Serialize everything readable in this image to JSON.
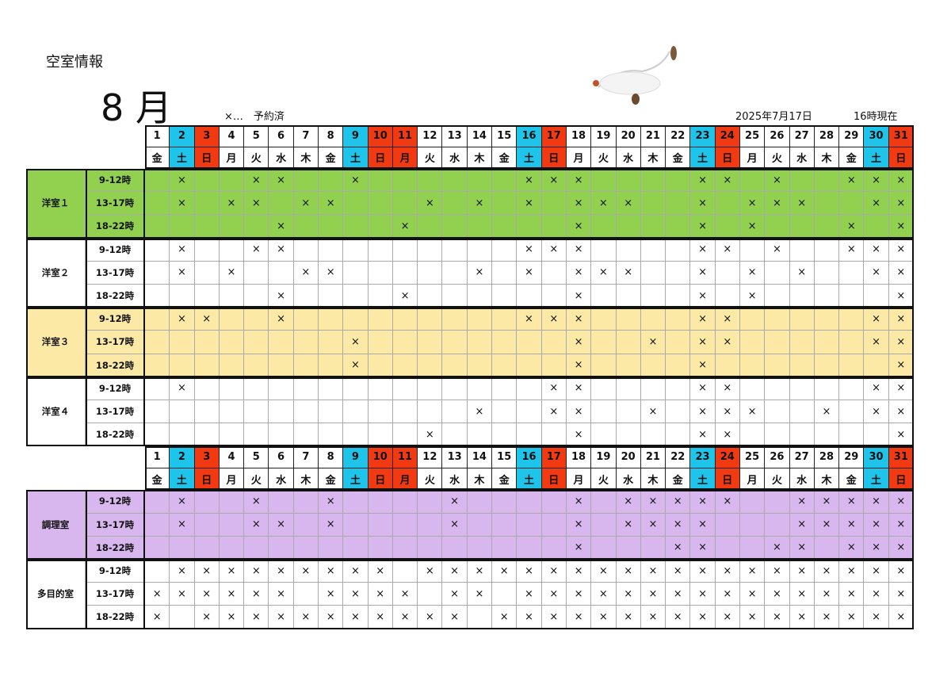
{
  "header": {
    "title": "空室情報",
    "month": "8 月",
    "legend": "×…　予約済",
    "date": "2025年7月17日",
    "time": "16時現在"
  },
  "days": [
    {
      "day": 1,
      "weekday": "金",
      "color": "#ffffff"
    },
    {
      "day": 2,
      "weekday": "土",
      "color": "#1fc4ea"
    },
    {
      "day": 3,
      "weekday": "日",
      "color": "#f23a12"
    },
    {
      "day": 4,
      "weekday": "月",
      "color": "#ffffff"
    },
    {
      "day": 5,
      "weekday": "火",
      "color": "#ffffff"
    },
    {
      "day": 6,
      "weekday": "水",
      "color": "#ffffff"
    },
    {
      "day": 7,
      "weekday": "木",
      "color": "#ffffff"
    },
    {
      "day": 8,
      "weekday": "金",
      "color": "#ffffff"
    },
    {
      "day": 9,
      "weekday": "土",
      "color": "#1fc4ea"
    },
    {
      "day": 10,
      "weekday": "日",
      "color": "#f23a12"
    },
    {
      "day": 11,
      "weekday": "月",
      "color": "#f23a12"
    },
    {
      "day": 12,
      "weekday": "火",
      "color": "#ffffff"
    },
    {
      "day": 13,
      "weekday": "水",
      "color": "#ffffff"
    },
    {
      "day": 14,
      "weekday": "木",
      "color": "#ffffff"
    },
    {
      "day": 15,
      "weekday": "金",
      "color": "#ffffff"
    },
    {
      "day": 16,
      "weekday": "土",
      "color": "#1fc4ea"
    },
    {
      "day": 17,
      "weekday": "日",
      "color": "#f23a12"
    },
    {
      "day": 18,
      "weekday": "月",
      "color": "#ffffff"
    },
    {
      "day": 19,
      "weekday": "火",
      "color": "#ffffff"
    },
    {
      "day": 20,
      "weekday": "水",
      "color": "#ffffff"
    },
    {
      "day": 21,
      "weekday": "木",
      "color": "#ffffff"
    },
    {
      "day": 22,
      "weekday": "金",
      "color": "#ffffff"
    },
    {
      "day": 23,
      "weekday": "土",
      "color": "#1fc4ea"
    },
    {
      "day": 24,
      "weekday": "日",
      "color": "#f23a12"
    },
    {
      "day": 25,
      "weekday": "月",
      "color": "#ffffff"
    },
    {
      "day": 26,
      "weekday": "火",
      "color": "#ffffff"
    },
    {
      "day": 27,
      "weekday": "水",
      "color": "#ffffff"
    },
    {
      "day": 28,
      "weekday": "木",
      "color": "#ffffff"
    },
    {
      "day": 29,
      "weekday": "金",
      "color": "#ffffff"
    },
    {
      "day": 30,
      "weekday": "土",
      "color": "#1fc4ea"
    },
    {
      "day": 31,
      "weekday": "日",
      "color": "#f23a12"
    }
  ],
  "sections": [
    {
      "rooms": [
        {
          "name": "洋室１",
          "color": "#92d050",
          "slots": [
            {
              "time": "9-12時",
              "cells": [
                null,
                "×",
                null,
                null,
                "×",
                "×",
                null,
                null,
                "×",
                null,
                null,
                null,
                null,
                null,
                null,
                "×",
                "×",
                "×",
                null,
                null,
                null,
                null,
                "×",
                "×",
                null,
                "×",
                null,
                null,
                "×",
                "×",
                "×"
              ]
            },
            {
              "time": "13-17時",
              "cells": [
                null,
                "×",
                null,
                "×",
                "×",
                null,
                "×",
                "×",
                null,
                null,
                null,
                "×",
                null,
                "×",
                null,
                "×",
                null,
                "×",
                "×",
                "×",
                null,
                null,
                "×",
                null,
                "×",
                "×",
                "×",
                null,
                null,
                "×",
                "×"
              ]
            },
            {
              "time": "18-22時",
              "cells": [
                null,
                null,
                null,
                null,
                null,
                "×",
                null,
                null,
                null,
                null,
                "×",
                null,
                null,
                null,
                null,
                null,
                null,
                "×",
                null,
                null,
                null,
                null,
                "×",
                null,
                "×",
                null,
                null,
                null,
                "×",
                null,
                "×"
              ]
            }
          ]
        },
        {
          "name": "洋室２",
          "color": "#ffffff",
          "slots": [
            {
              "time": "9-12時",
              "cells": [
                null,
                "×",
                null,
                null,
                "×",
                "×",
                null,
                null,
                null,
                null,
                null,
                null,
                null,
                null,
                null,
                "×",
                "×",
                "×",
                null,
                null,
                null,
                null,
                "×",
                "×",
                null,
                "×",
                null,
                null,
                "×",
                "×",
                "×"
              ]
            },
            {
              "time": "13-17時",
              "cells": [
                null,
                "×",
                null,
                "×",
                null,
                null,
                "×",
                "×",
                null,
                null,
                null,
                null,
                null,
                "×",
                null,
                "×",
                null,
                "×",
                "×",
                "×",
                null,
                null,
                "×",
                null,
                "×",
                null,
                "×",
                null,
                null,
                "×",
                "×"
              ]
            },
            {
              "time": "18-22時",
              "cells": [
                null,
                null,
                null,
                null,
                null,
                "×",
                null,
                null,
                null,
                null,
                "×",
                null,
                null,
                null,
                null,
                null,
                null,
                "×",
                null,
                null,
                null,
                null,
                "×",
                null,
                "×",
                null,
                null,
                null,
                null,
                null,
                "×"
              ]
            }
          ]
        },
        {
          "name": "洋室３",
          "color": "#fbe9a5",
          "slots": [
            {
              "time": "9-12時",
              "cells": [
                null,
                "×",
                "×",
                null,
                null,
                "×",
                null,
                null,
                null,
                null,
                null,
                null,
                null,
                null,
                null,
                "×",
                "×",
                "×",
                null,
                null,
                null,
                null,
                "×",
                "×",
                null,
                null,
                null,
                null,
                null,
                "×",
                "×"
              ]
            },
            {
              "time": "13-17時",
              "cells": [
                null,
                null,
                null,
                null,
                null,
                null,
                null,
                null,
                "×",
                null,
                null,
                null,
                null,
                null,
                null,
                null,
                null,
                "×",
                null,
                null,
                "×",
                null,
                "×",
                "×",
                null,
                null,
                null,
                null,
                null,
                "×",
                "×"
              ]
            },
            {
              "time": "18-22時",
              "cells": [
                null,
                null,
                null,
                null,
                null,
                null,
                null,
                null,
                "×",
                null,
                null,
                null,
                null,
                null,
                null,
                null,
                null,
                "×",
                null,
                null,
                null,
                null,
                "×",
                null,
                null,
                null,
                null,
                null,
                null,
                null,
                "×"
              ]
            }
          ]
        },
        {
          "name": "洋室４",
          "color": "#ffffff",
          "slots": [
            {
              "time": "9-12時",
              "cells": [
                null,
                "×",
                null,
                null,
                null,
                null,
                null,
                null,
                null,
                null,
                null,
                null,
                null,
                null,
                null,
                null,
                "×",
                "×",
                null,
                null,
                null,
                null,
                "×",
                "×",
                null,
                null,
                null,
                null,
                null,
                "×",
                "×"
              ]
            },
            {
              "time": "13-17時",
              "cells": [
                null,
                null,
                null,
                null,
                null,
                null,
                null,
                null,
                null,
                null,
                null,
                null,
                null,
                "×",
                null,
                null,
                "×",
                "×",
                null,
                null,
                "×",
                null,
                "×",
                "×",
                "×",
                null,
                null,
                "×",
                null,
                "×",
                "×"
              ]
            },
            {
              "time": "18-22時",
              "cells": [
                null,
                null,
                null,
                null,
                null,
                null,
                null,
                null,
                null,
                null,
                null,
                "×",
                null,
                null,
                null,
                null,
                null,
                "×",
                null,
                null,
                null,
                null,
                "×",
                "×",
                null,
                null,
                null,
                null,
                null,
                null,
                "×"
              ]
            }
          ]
        }
      ]
    },
    {
      "rooms": [
        {
          "name": "調理室",
          "color": "#d8b6ee",
          "slots": [
            {
              "time": "9-12時",
              "cells": [
                null,
                "×",
                null,
                null,
                "×",
                null,
                null,
                "×",
                null,
                null,
                null,
                null,
                "×",
                null,
                null,
                null,
                null,
                "×",
                null,
                "×",
                "×",
                "×",
                "×",
                "×",
                null,
                null,
                "×",
                "×",
                "×",
                "×",
                "×"
              ]
            },
            {
              "time": "13-17時",
              "cells": [
                null,
                "×",
                null,
                null,
                "×",
                "×",
                null,
                "×",
                null,
                null,
                null,
                null,
                "×",
                null,
                null,
                null,
                null,
                "×",
                null,
                "×",
                "×",
                "×",
                "×",
                null,
                null,
                null,
                "×",
                "×",
                "×",
                "×",
                "×"
              ]
            },
            {
              "time": "18-22時",
              "cells": [
                null,
                null,
                null,
                null,
                null,
                null,
                null,
                null,
                null,
                null,
                null,
                null,
                null,
                null,
                null,
                null,
                null,
                "×",
                null,
                null,
                null,
                "×",
                "×",
                null,
                null,
                "×",
                "×",
                null,
                "×",
                "×",
                "×"
              ]
            }
          ]
        },
        {
          "name": "多目的室",
          "color": "#ffffff",
          "slots": [
            {
              "time": "9-12時",
              "cells": [
                null,
                "×",
                "×",
                "×",
                "×",
                "×",
                "×",
                "×",
                "×",
                "×",
                null,
                "×",
                "×",
                "×",
                "×",
                "×",
                "×",
                "×",
                "×",
                "×",
                "×",
                "×",
                "×",
                "×",
                "×",
                "×",
                "×",
                "×",
                "×",
                "×",
                "×"
              ]
            },
            {
              "time": "13-17時",
              "cells": [
                "×",
                "×",
                "×",
                "×",
                "×",
                "×",
                null,
                "×",
                "×",
                "×",
                "×",
                null,
                "×",
                "×",
                null,
                "×",
                "×",
                "×",
                "×",
                "×",
                "×",
                "×",
                "×",
                "×",
                "×",
                "×",
                "×",
                "×",
                "×",
                "×",
                "×"
              ]
            },
            {
              "time": "18-22時",
              "cells": [
                "×",
                null,
                "×",
                "×",
                "×",
                "×",
                "×",
                "×",
                "×",
                "×",
                "×",
                "×",
                "×",
                null,
                "×",
                "×",
                "×",
                "×",
                "×",
                "×",
                "×",
                "×",
                "×",
                "×",
                "×",
                "×",
                "×",
                "×",
                "×",
                "×",
                "×"
              ]
            }
          ]
        }
      ]
    }
  ]
}
